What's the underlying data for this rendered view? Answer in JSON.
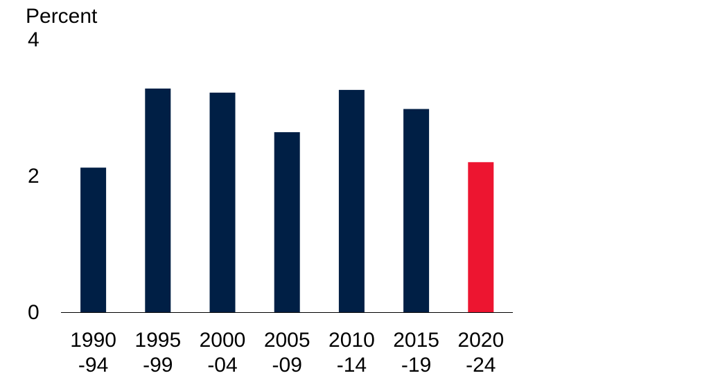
{
  "chart_data": {
    "type": "bar",
    "ylabel": "Percent",
    "ylim": [
      0,
      4
    ],
    "yticks": [
      "0",
      "2",
      "4"
    ],
    "categories": [
      [
        "1990",
        "-94"
      ],
      [
        "1995",
        "-99"
      ],
      [
        "2000",
        "-04"
      ],
      [
        "2005",
        "-09"
      ],
      [
        "2010",
        "-14"
      ],
      [
        "2015",
        "-19"
      ],
      [
        "2020",
        "-24"
      ]
    ],
    "values": [
      2.12,
      3.28,
      3.22,
      2.64,
      3.26,
      2.98,
      2.2
    ],
    "colors": {
      "default": "#001f45",
      "highlight": "#ed1530"
    },
    "highlight_index": 6,
    "grid": false
  }
}
